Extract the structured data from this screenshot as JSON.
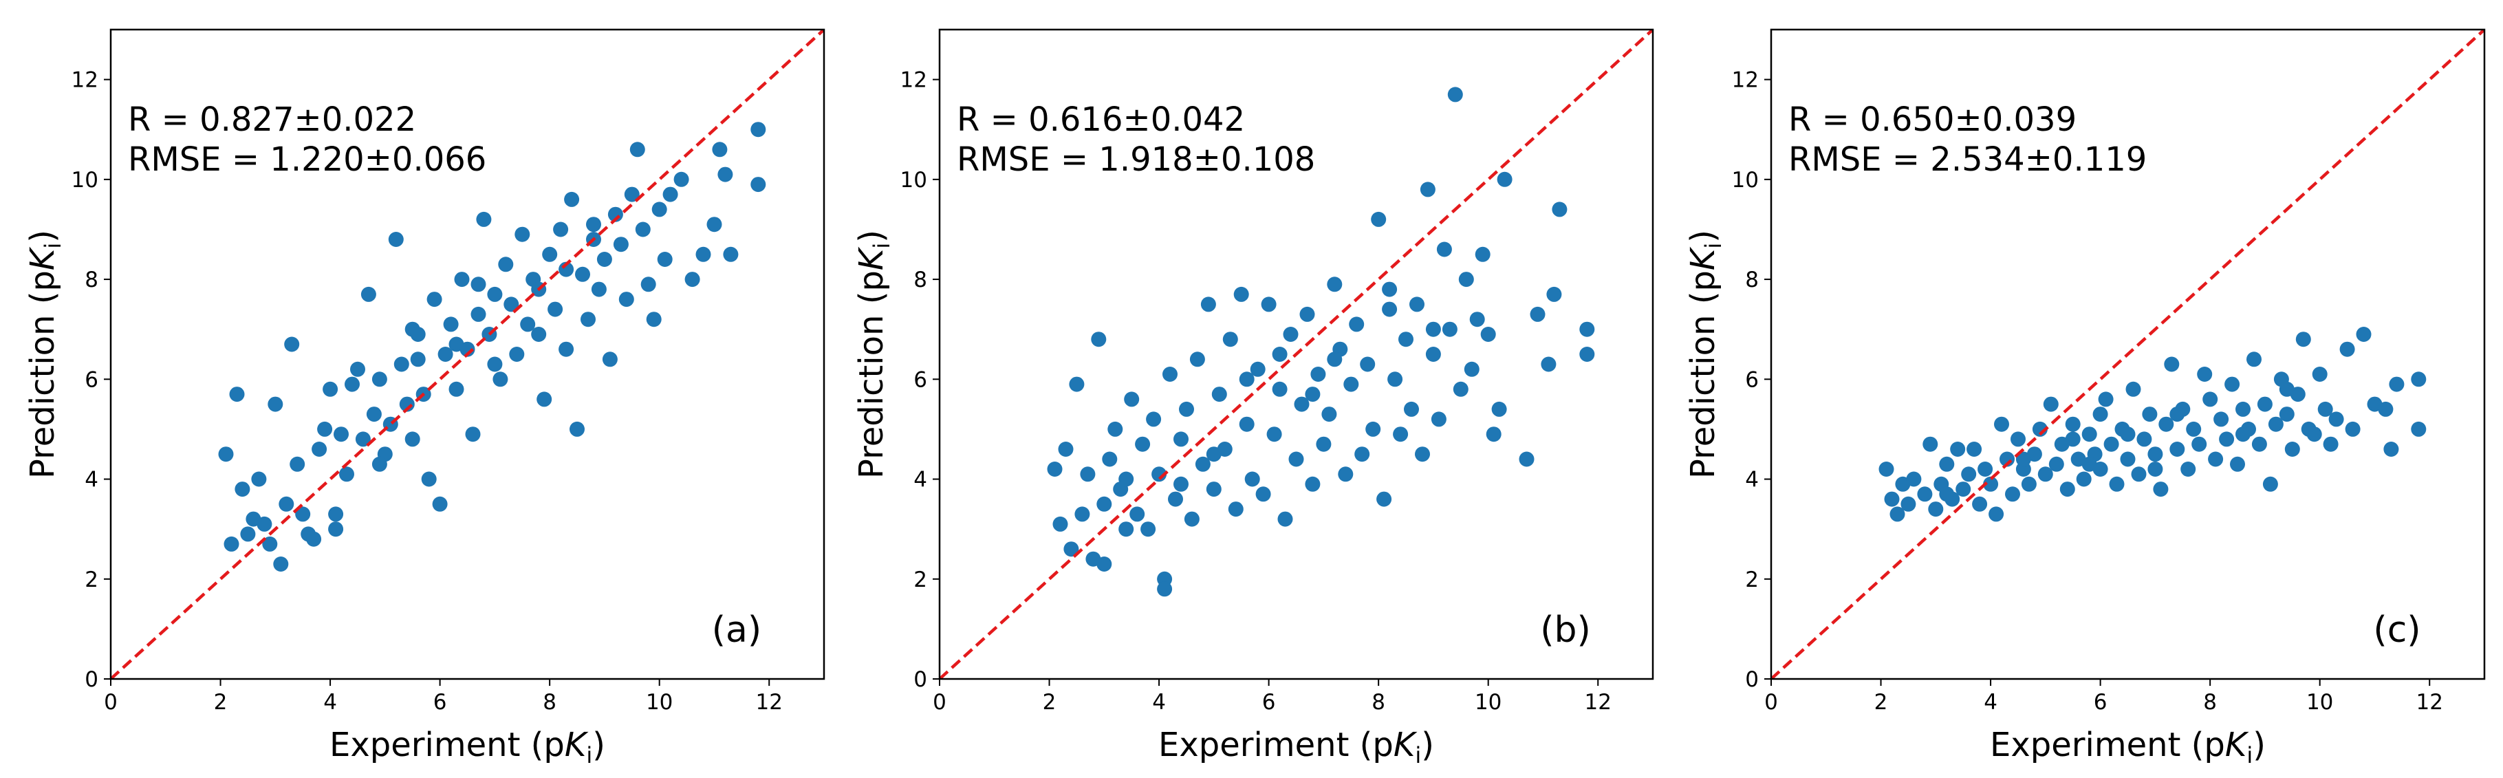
{
  "chart_data": [
    {
      "type": "scatter",
      "panel_label": "(a)",
      "stats": {
        "r_text": "R = 0.827±0.022",
        "rmse_text": "RMSE = 1.220±0.066"
      },
      "xlabel": {
        "main": "Experiment (p",
        "italic": "K",
        "sub": "i",
        "close": ")"
      },
      "ylabel": {
        "main": "Prediction (p",
        "italic": "K",
        "sub": "i",
        "close": ")"
      },
      "xlim": [
        0,
        13
      ],
      "ylim": [
        0,
        13
      ],
      "xticks": [
        0,
        2,
        4,
        6,
        8,
        10,
        12
      ],
      "yticks": [
        0,
        2,
        4,
        6,
        8,
        10,
        12
      ],
      "grid": false,
      "reference_line": {
        "from": [
          0,
          0
        ],
        "to": [
          13,
          13
        ],
        "style": "dashed",
        "color": "#e41a1c"
      },
      "marker_color": "#1f77b4",
      "points": [
        [
          2.1,
          4.5
        ],
        [
          2.2,
          2.7
        ],
        [
          2.3,
          5.7
        ],
        [
          2.4,
          3.8
        ],
        [
          2.5,
          2.9
        ],
        [
          2.6,
          3.2
        ],
        [
          2.7,
          4.0
        ],
        [
          2.8,
          3.1
        ],
        [
          2.9,
          2.7
        ],
        [
          3.0,
          5.5
        ],
        [
          3.1,
          2.3
        ],
        [
          3.2,
          3.5
        ],
        [
          3.3,
          6.7
        ],
        [
          3.4,
          4.3
        ],
        [
          3.5,
          3.3
        ],
        [
          3.6,
          2.9
        ],
        [
          3.8,
          4.6
        ],
        [
          3.9,
          5.0
        ],
        [
          4.0,
          5.8
        ],
        [
          4.1,
          3.3
        ],
        [
          4.2,
          4.9
        ],
        [
          4.3,
          4.1
        ],
        [
          4.4,
          5.9
        ],
        [
          4.5,
          6.2
        ],
        [
          4.6,
          4.8
        ],
        [
          4.7,
          7.7
        ],
        [
          4.8,
          5.3
        ],
        [
          4.9,
          6.0
        ],
        [
          5.0,
          4.5
        ],
        [
          5.1,
          5.1
        ],
        [
          5.2,
          8.8
        ],
        [
          5.3,
          6.3
        ],
        [
          5.4,
          5.5
        ],
        [
          5.5,
          7.0
        ],
        [
          5.6,
          6.4
        ],
        [
          5.7,
          5.7
        ],
        [
          5.8,
          4.0
        ],
        [
          5.9,
          7.6
        ],
        [
          6.0,
          3.5
        ],
        [
          6.1,
          6.5
        ],
        [
          6.2,
          7.1
        ],
        [
          6.3,
          5.8
        ],
        [
          6.4,
          8.0
        ],
        [
          6.5,
          6.6
        ],
        [
          6.6,
          4.9
        ],
        [
          6.7,
          7.3
        ],
        [
          6.8,
          9.2
        ],
        [
          6.9,
          6.9
        ],
        [
          7.0,
          7.7
        ],
        [
          7.1,
          6.0
        ],
        [
          7.2,
          8.3
        ],
        [
          7.3,
          7.5
        ],
        [
          7.4,
          6.5
        ],
        [
          7.5,
          8.9
        ],
        [
          7.6,
          7.1
        ],
        [
          7.7,
          8.0
        ],
        [
          7.8,
          6.9
        ],
        [
          7.9,
          5.6
        ],
        [
          8.0,
          8.5
        ],
        [
          8.1,
          7.4
        ],
        [
          8.2,
          9.0
        ],
        [
          8.3,
          6.6
        ],
        [
          8.4,
          9.6
        ],
        [
          8.5,
          5.0
        ],
        [
          8.6,
          8.1
        ],
        [
          8.7,
          7.2
        ],
        [
          8.8,
          9.1
        ],
        [
          8.9,
          7.8
        ],
        [
          9.0,
          8.4
        ],
        [
          9.1,
          6.4
        ],
        [
          9.2,
          9.3
        ],
        [
          9.3,
          8.7
        ],
        [
          9.4,
          7.6
        ],
        [
          9.5,
          9.7
        ],
        [
          9.6,
          10.6
        ],
        [
          9.7,
          9.0
        ],
        [
          9.8,
          7.9
        ],
        [
          9.9,
          7.2
        ],
        [
          10.0,
          9.4
        ],
        [
          10.1,
          8.4
        ],
        [
          10.2,
          9.7
        ],
        [
          10.4,
          10.0
        ],
        [
          10.6,
          8.0
        ],
        [
          10.8,
          8.5
        ],
        [
          11.0,
          9.1
        ],
        [
          11.1,
          10.6
        ],
        [
          11.2,
          10.1
        ],
        [
          11.3,
          8.5
        ],
        [
          11.8,
          11.0
        ],
        [
          11.8,
          9.9
        ],
        [
          3.7,
          2.8
        ],
        [
          4.1,
          3.0
        ],
        [
          5.5,
          4.8
        ],
        [
          6.3,
          6.7
        ],
        [
          7.0,
          6.3
        ],
        [
          7.8,
          7.8
        ],
        [
          8.3,
          8.2
        ],
        [
          4.9,
          4.3
        ],
        [
          5.6,
          6.9
        ],
        [
          6.7,
          7.9
        ],
        [
          8.8,
          8.8
        ]
      ]
    },
    {
      "type": "scatter",
      "panel_label": "(b)",
      "stats": {
        "r_text": "R = 0.616±0.042",
        "rmse_text": "RMSE = 1.918±0.108"
      },
      "xlabel": {
        "main": "Experiment (p",
        "italic": "K",
        "sub": "i",
        "close": ")"
      },
      "ylabel": {
        "main": "Prediction (p",
        "italic": "K",
        "sub": "i",
        "close": ")"
      },
      "xlim": [
        0,
        13
      ],
      "ylim": [
        0,
        13
      ],
      "xticks": [
        0,
        2,
        4,
        6,
        8,
        10,
        12
      ],
      "yticks": [
        0,
        2,
        4,
        6,
        8,
        10,
        12
      ],
      "grid": false,
      "reference_line": {
        "from": [
          0,
          0
        ],
        "to": [
          13,
          13
        ],
        "style": "dashed",
        "color": "#e41a1c"
      },
      "marker_color": "#1f77b4",
      "points": [
        [
          2.1,
          4.2
        ],
        [
          2.2,
          3.1
        ],
        [
          2.3,
          4.6
        ],
        [
          2.4,
          2.6
        ],
        [
          2.5,
          5.9
        ],
        [
          2.6,
          3.3
        ],
        [
          2.7,
          4.1
        ],
        [
          2.8,
          2.4
        ],
        [
          2.9,
          6.8
        ],
        [
          3.0,
          3.5
        ],
        [
          3.1,
          4.4
        ],
        [
          3.2,
          5.0
        ],
        [
          3.3,
          3.8
        ],
        [
          3.4,
          4.0
        ],
        [
          3.5,
          5.6
        ],
        [
          3.6,
          3.3
        ],
        [
          3.7,
          4.7
        ],
        [
          3.8,
          3.0
        ],
        [
          3.9,
          5.2
        ],
        [
          4.0,
          4.1
        ],
        [
          4.1,
          2.0
        ],
        [
          4.1,
          1.8
        ],
        [
          4.2,
          6.1
        ],
        [
          4.3,
          3.6
        ],
        [
          4.4,
          4.8
        ],
        [
          4.5,
          5.4
        ],
        [
          4.6,
          3.2
        ],
        [
          4.7,
          6.4
        ],
        [
          4.8,
          4.3
        ],
        [
          4.9,
          7.5
        ],
        [
          5.0,
          3.8
        ],
        [
          5.1,
          5.7
        ],
        [
          5.2,
          4.6
        ],
        [
          5.3,
          6.8
        ],
        [
          5.4,
          3.4
        ],
        [
          5.5,
          7.7
        ],
        [
          5.6,
          5.1
        ],
        [
          5.7,
          4.0
        ],
        [
          5.8,
          6.2
        ],
        [
          5.9,
          3.7
        ],
        [
          6.0,
          7.5
        ],
        [
          6.1,
          4.9
        ],
        [
          6.2,
          5.8
        ],
        [
          6.3,
          3.2
        ],
        [
          6.4,
          6.9
        ],
        [
          6.5,
          4.4
        ],
        [
          6.6,
          5.5
        ],
        [
          6.7,
          7.3
        ],
        [
          6.8,
          3.9
        ],
        [
          6.9,
          6.1
        ],
        [
          7.0,
          4.7
        ],
        [
          7.1,
          5.3
        ],
        [
          7.2,
          7.9
        ],
        [
          7.3,
          6.6
        ],
        [
          7.4,
          4.1
        ],
        [
          7.5,
          5.9
        ],
        [
          7.6,
          7.1
        ],
        [
          7.7,
          4.5
        ],
        [
          7.8,
          6.3
        ],
        [
          7.9,
          5.0
        ],
        [
          8.0,
          9.2
        ],
        [
          8.1,
          3.6
        ],
        [
          8.2,
          7.4
        ],
        [
          8.3,
          6.0
        ],
        [
          8.4,
          4.9
        ],
        [
          8.5,
          6.8
        ],
        [
          8.6,
          5.4
        ],
        [
          8.7,
          7.5
        ],
        [
          8.8,
          4.5
        ],
        [
          8.9,
          9.8
        ],
        [
          9.0,
          6.5
        ],
        [
          9.1,
          5.2
        ],
        [
          9.2,
          8.6
        ],
        [
          9.3,
          7.0
        ],
        [
          9.4,
          11.7
        ],
        [
          9.5,
          5.8
        ],
        [
          9.6,
          8.0
        ],
        [
          9.7,
          6.2
        ],
        [
          9.8,
          7.2
        ],
        [
          9.9,
          8.5
        ],
        [
          10.0,
          6.9
        ],
        [
          10.1,
          4.9
        ],
        [
          10.2,
          5.4
        ],
        [
          10.3,
          10.0
        ],
        [
          10.7,
          4.4
        ],
        [
          10.9,
          7.3
        ],
        [
          11.1,
          6.3
        ],
        [
          11.2,
          7.7
        ],
        [
          11.3,
          9.4
        ],
        [
          11.8,
          7.0
        ],
        [
          11.8,
          6.5
        ],
        [
          3.0,
          2.3
        ],
        [
          3.4,
          3.0
        ],
        [
          5.0,
          4.5
        ],
        [
          6.2,
          6.5
        ],
        [
          7.2,
          6.4
        ],
        [
          8.2,
          7.8
        ],
        [
          9.0,
          7.0
        ],
        [
          5.6,
          6.0
        ],
        [
          4.4,
          3.9
        ],
        [
          6.8,
          5.7
        ]
      ]
    },
    {
      "type": "scatter",
      "panel_label": "(c)",
      "stats": {
        "r_text": "R = 0.650±0.039",
        "rmse_text": "RMSE = 2.534±0.119"
      },
      "xlabel": {
        "main": "Experiment (p",
        "italic": "K",
        "sub": "i",
        "close": ")"
      },
      "ylabel": {
        "main": "Prediction (p",
        "italic": "K",
        "sub": "i",
        "close": ")"
      },
      "xlim": [
        0,
        13
      ],
      "ylim": [
        0,
        13
      ],
      "xticks": [
        0,
        2,
        4,
        6,
        8,
        10,
        12
      ],
      "yticks": [
        0,
        2,
        4,
        6,
        8,
        10,
        12
      ],
      "grid": false,
      "reference_line": {
        "from": [
          0,
          0
        ],
        "to": [
          13,
          13
        ],
        "style": "dashed",
        "color": "#e41a1c"
      },
      "marker_color": "#1f77b4",
      "points": [
        [
          2.1,
          4.2
        ],
        [
          2.2,
          3.6
        ],
        [
          2.3,
          3.3
        ],
        [
          2.4,
          3.9
        ],
        [
          2.5,
          3.5
        ],
        [
          2.6,
          4.0
        ],
        [
          2.8,
          3.7
        ],
        [
          2.9,
          4.7
        ],
        [
          3.0,
          3.4
        ],
        [
          3.1,
          3.9
        ],
        [
          3.2,
          4.3
        ],
        [
          3.3,
          3.6
        ],
        [
          3.4,
          4.6
        ],
        [
          3.5,
          3.8
        ],
        [
          3.6,
          4.1
        ],
        [
          3.7,
          4.6
        ],
        [
          3.8,
          3.5
        ],
        [
          3.9,
          4.2
        ],
        [
          4.0,
          3.9
        ],
        [
          4.1,
          3.3
        ],
        [
          4.2,
          5.1
        ],
        [
          4.3,
          4.4
        ],
        [
          4.4,
          3.7
        ],
        [
          4.5,
          4.8
        ],
        [
          4.6,
          4.2
        ],
        [
          4.7,
          3.9
        ],
        [
          4.8,
          4.5
        ],
        [
          4.9,
          5.0
        ],
        [
          5.0,
          4.1
        ],
        [
          5.1,
          5.5
        ],
        [
          5.2,
          4.3
        ],
        [
          5.3,
          4.7
        ],
        [
          5.4,
          3.8
        ],
        [
          5.5,
          5.1
        ],
        [
          5.6,
          4.4
        ],
        [
          5.7,
          4.0
        ],
        [
          5.8,
          4.9
        ],
        [
          5.9,
          4.5
        ],
        [
          6.0,
          4.2
        ],
        [
          6.1,
          5.6
        ],
        [
          6.2,
          4.7
        ],
        [
          6.3,
          3.9
        ],
        [
          6.4,
          5.0
        ],
        [
          6.5,
          4.4
        ],
        [
          6.6,
          5.8
        ],
        [
          6.7,
          4.1
        ],
        [
          6.8,
          4.8
        ],
        [
          6.9,
          5.3
        ],
        [
          7.0,
          4.5
        ],
        [
          7.1,
          3.8
        ],
        [
          7.2,
          5.1
        ],
        [
          7.3,
          6.3
        ],
        [
          7.4,
          4.6
        ],
        [
          7.5,
          5.4
        ],
        [
          7.6,
          4.2
        ],
        [
          7.7,
          5.0
        ],
        [
          7.8,
          4.7
        ],
        [
          7.9,
          6.1
        ],
        [
          8.0,
          5.6
        ],
        [
          8.1,
          4.4
        ],
        [
          8.2,
          5.2
        ],
        [
          8.3,
          4.8
        ],
        [
          8.4,
          5.9
        ],
        [
          8.5,
          4.3
        ],
        [
          8.6,
          5.4
        ],
        [
          8.7,
          5.0
        ],
        [
          8.8,
          6.4
        ],
        [
          8.9,
          4.7
        ],
        [
          9.0,
          5.5
        ],
        [
          9.1,
          3.9
        ],
        [
          9.2,
          5.1
        ],
        [
          9.3,
          6.0
        ],
        [
          9.4,
          5.3
        ],
        [
          9.5,
          4.6
        ],
        [
          9.6,
          5.7
        ],
        [
          9.7,
          6.8
        ],
        [
          9.8,
          5.0
        ],
        [
          9.9,
          4.9
        ],
        [
          10.0,
          6.1
        ],
        [
          10.1,
          5.4
        ],
        [
          10.2,
          4.7
        ],
        [
          10.3,
          5.2
        ],
        [
          10.5,
          6.6
        ],
        [
          10.6,
          5.0
        ],
        [
          10.8,
          6.9
        ],
        [
          11.0,
          5.5
        ],
        [
          11.2,
          5.4
        ],
        [
          11.3,
          4.6
        ],
        [
          11.4,
          5.9
        ],
        [
          11.8,
          6.0
        ],
        [
          11.8,
          5.0
        ],
        [
          5.5,
          4.8
        ],
        [
          6.5,
          4.9
        ],
        [
          7.4,
          5.3
        ],
        [
          8.6,
          4.9
        ],
        [
          4.6,
          4.4
        ],
        [
          6.0,
          5.3
        ],
        [
          7.0,
          4.2
        ],
        [
          9.4,
          5.8
        ],
        [
          3.2,
          3.7
        ],
        [
          5.8,
          4.3
        ]
      ]
    }
  ]
}
